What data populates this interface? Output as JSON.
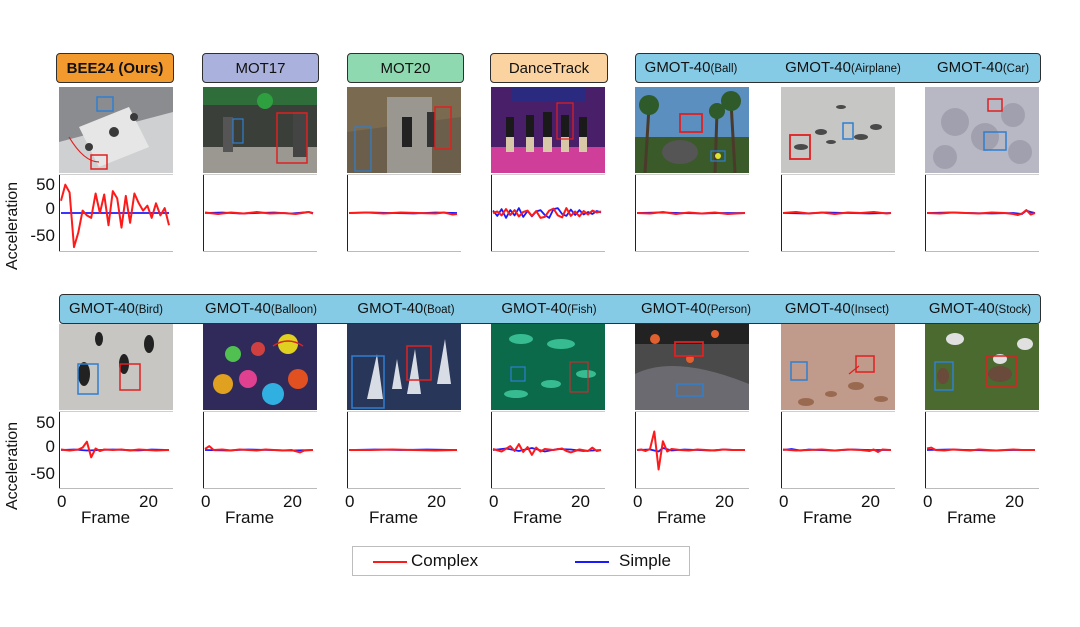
{
  "colors": {
    "complex": "#ff1a1a",
    "simple": "#1a1aff",
    "zero_line": "#5b5bff",
    "bee_header": "#f39a2e",
    "mot17_header": "#aab1dc",
    "mot20_header": "#8fd9b0",
    "dancetrack_header": "#fad3a0",
    "gmot_header": "#86cbe6"
  },
  "row1": {
    "headers": [
      "BEE24 (Ours)",
      "MOT17",
      "MOT20",
      "DanceTrack"
    ],
    "gmot_prefix": "GMOT-40",
    "gmot_suffixes": [
      "(Ball)",
      "(Airplane)",
      "(Car)"
    ]
  },
  "row2": {
    "gmot_prefix": "GMOT-40",
    "gmot_suffixes": [
      "(Bird)",
      "(Balloon)",
      "(Boat)",
      "(Fish)",
      "(Person)",
      "(Insect)",
      "(Stock)"
    ]
  },
  "images": [
    "bees-icon",
    "street-crowd-icon",
    "station-crowd-icon",
    "dancers-icon",
    "ball-sports-icon",
    "airplanes-icon",
    "cars-icon",
    "penguins-icon",
    "balloons-icon",
    "sailboats-icon",
    "fish-icon",
    "parachute-people-icon",
    "insects-icon",
    "livestock-icon"
  ],
  "axes": {
    "ylabel": "Acceleration",
    "xlabel": "Frame",
    "yticks": [
      "50",
      "0",
      "-50"
    ],
    "xticks": [
      "0",
      "20"
    ]
  },
  "legend": {
    "complex": "Complex",
    "simple": "Simple"
  },
  "chart_data": {
    "type": "line",
    "xlabel": "Frame",
    "ylabel": "Acceleration",
    "ylim": [
      -80,
      80
    ],
    "xlim": [
      0,
      25
    ],
    "panels": [
      {
        "title": "BEE24 (Ours)",
        "series": [
          {
            "name": "Complex",
            "x": [
              0,
              1,
              2,
              3,
              4,
              5,
              6,
              7,
              8,
              9,
              10,
              11,
              12,
              13,
              14,
              15,
              16,
              17,
              18,
              19,
              20,
              21,
              22,
              23,
              24,
              25
            ],
            "y": [
              25,
              58,
              42,
              -70,
              -40,
              5,
              -5,
              -10,
              40,
              0,
              38,
              -25,
              45,
              30,
              -30,
              35,
              -20,
              40,
              20,
              5,
              15,
              -10,
              20,
              -5,
              10,
              -25
            ]
          },
          {
            "name": "Simple",
            "x": [
              0,
              25
            ],
            "y": [
              0,
              0
            ]
          }
        ]
      },
      {
        "title": "MOT17",
        "series": [
          {
            "name": "Complex",
            "x": [
              0,
              3,
              6,
              9,
              12,
              15,
              18,
              21,
              24,
              25
            ],
            "y": [
              1,
              -2,
              1,
              -1,
              2,
              -1,
              0,
              -2,
              2,
              -1
            ]
          },
          {
            "name": "Simple",
            "x": [
              0,
              4,
              8,
              12,
              16,
              20,
              24,
              25
            ],
            "y": [
              0,
              1,
              -1,
              0,
              1,
              -1,
              2,
              0
            ]
          }
        ]
      },
      {
        "title": "MOT20",
        "series": [
          {
            "name": "Complex",
            "x": [
              0,
              4,
              8,
              12,
              16,
              20,
              22,
              24,
              25
            ],
            "y": [
              0,
              1,
              -1,
              1,
              0,
              -1,
              1,
              -3,
              -2
            ]
          },
          {
            "name": "Simple",
            "x": [
              0,
              5,
              10,
              15,
              20,
              25
            ],
            "y": [
              0,
              1,
              0,
              -1,
              1,
              0
            ]
          }
        ]
      },
      {
        "title": "DanceTrack",
        "series": [
          {
            "name": "Complex",
            "x": [
              0,
              1,
              2,
              3,
              4,
              5,
              6,
              7,
              8,
              9,
              10,
              11,
              12,
              13,
              14,
              15,
              16,
              17,
              18,
              19,
              20,
              21,
              22,
              23,
              24,
              25
            ],
            "y": [
              0,
              3,
              -5,
              8,
              -4,
              6,
              -7,
              2,
              5,
              -6,
              4,
              -10,
              -8,
              5,
              9,
              -5,
              -9,
              10,
              -6,
              3,
              -7,
              4,
              -3,
              5,
              1,
              3
            ]
          },
          {
            "name": "Simple",
            "x": [
              0,
              1,
              2,
              3,
              4,
              5,
              6,
              7,
              8,
              9,
              10,
              11,
              12,
              13,
              14,
              15,
              16,
              17,
              18,
              19,
              20,
              21,
              22,
              23,
              24,
              25
            ],
            "y": [
              5,
              -6,
              8,
              -10,
              6,
              -5,
              10,
              -8,
              4,
              -7,
              3,
              6,
              -4,
              -10,
              8,
              10,
              -2,
              -6,
              7,
              -4,
              6,
              -3,
              2,
              -2,
              4,
              1
            ]
          }
        ]
      },
      {
        "title": "GMOT-40(Ball)",
        "series": [
          {
            "name": "Complex",
            "x": [
              0,
              3,
              6,
              9,
              12,
              15,
              18,
              21,
              25
            ],
            "y": [
              0,
              -1,
              2,
              -2,
              1,
              -1,
              1,
              -2,
              0
            ]
          },
          {
            "name": "Simple",
            "x": [
              0,
              5,
              10,
              15,
              20,
              25
            ],
            "y": [
              0,
              1,
              0,
              -1,
              0,
              0
            ]
          }
        ]
      },
      {
        "title": "GMOT-40(Airplane)",
        "series": [
          {
            "name": "Complex",
            "x": [
              0,
              3,
              6,
              9,
              12,
              15,
              18,
              21,
              24,
              25
            ],
            "y": [
              0,
              2,
              -1,
              1,
              -2,
              1,
              0,
              2,
              -1,
              0
            ]
          },
          {
            "name": "Simple",
            "x": [
              0,
              5,
              10,
              15,
              20,
              25
            ],
            "y": [
              0,
              -1,
              1,
              0,
              -1,
              0
            ]
          }
        ]
      },
      {
        "title": "GMOT-40(Car)",
        "series": [
          {
            "name": "Complex",
            "x": [
              0,
              3,
              6,
              9,
              12,
              15,
              18,
              20,
              21,
              22,
              23,
              24,
              25
            ],
            "y": [
              0,
              -1,
              1,
              0,
              -1,
              1,
              0,
              -2,
              -4,
              -1,
              6,
              -3,
              0
            ]
          },
          {
            "name": "Simple",
            "x": [
              0,
              5,
              10,
              15,
              20,
              22,
              23,
              24,
              25
            ],
            "y": [
              0,
              1,
              0,
              -1,
              0,
              -2,
              5,
              2,
              0
            ]
          }
        ]
      },
      {
        "title": "GMOT-40(Bird)",
        "series": [
          {
            "name": "Complex",
            "x": [
              0,
              2,
              4,
              5,
              6,
              7,
              8,
              9,
              10,
              12,
              14,
              16,
              18,
              20,
              22,
              25
            ],
            "y": [
              1,
              -1,
              1,
              5,
              17,
              -15,
              3,
              -2,
              1,
              0,
              1,
              -1,
              1,
              0,
              -1,
              0
            ]
          },
          {
            "name": "Simple",
            "x": [
              0,
              3,
              6,
              9,
              12,
              15,
              18,
              21,
              25
            ],
            "y": [
              0,
              1,
              -1,
              0,
              1,
              0,
              -1,
              1,
              0
            ]
          }
        ]
      },
      {
        "title": "GMOT-40(Balloon)",
        "series": [
          {
            "name": "Complex",
            "x": [
              0,
              1,
              2,
              4,
              6,
              8,
              10,
              12,
              14,
              16,
              18,
              20,
              22,
              23,
              25
            ],
            "y": [
              2,
              8,
              0,
              1,
              -1,
              1,
              0,
              -1,
              1,
              0,
              -1,
              0,
              -5,
              -1,
              0
            ]
          },
          {
            "name": "Simple",
            "x": [
              0,
              5,
              10,
              15,
              20,
              25
            ],
            "y": [
              0,
              -1,
              1,
              0,
              -1,
              0
            ]
          }
        ]
      },
      {
        "title": "GMOT-40(Boat)",
        "series": [
          {
            "name": "Complex",
            "x": [
              0,
              5,
              10,
              15,
              20,
              25
            ],
            "y": [
              0,
              0,
              1,
              0,
              -1,
              0
            ]
          },
          {
            "name": "Simple",
            "x": [
              0,
              6,
              12,
              18,
              25
            ],
            "y": [
              0,
              1,
              0,
              1,
              0
            ]
          }
        ]
      },
      {
        "title": "GMOT-40(Fish)",
        "series": [
          {
            "name": "Complex",
            "x": [
              0,
              2,
              4,
              5,
              6,
              7,
              8,
              9,
              10,
              11,
              12,
              14,
              16,
              17,
              18,
              20,
              22,
              23,
              24,
              25
            ],
            "y": [
              2,
              -3,
              8,
              -2,
              12,
              -4,
              6,
              -10,
              5,
              -3,
              2,
              0,
              3,
              -2,
              -5,
              1,
              -2,
              5,
              -2,
              0
            ]
          },
          {
            "name": "Simple",
            "x": [
              0,
              3,
              6,
              9,
              12,
              15,
              18,
              21,
              25
            ],
            "y": [
              0,
              3,
              -2,
              4,
              -3,
              2,
              1,
              -2,
              0
            ]
          }
        ]
      },
      {
        "title": "GMOT-40(Person)",
        "series": [
          {
            "name": "Complex",
            "x": [
              0,
              1,
              2,
              3,
              4,
              5,
              6,
              7,
              8,
              10,
              12,
              14,
              16,
              18,
              20,
              22,
              25
            ],
            "y": [
              0,
              1,
              -2,
              2,
              38,
              -40,
              18,
              -3,
              2,
              0,
              -1,
              1,
              0,
              -1,
              1,
              0,
              0
            ]
          },
          {
            "name": "Simple",
            "x": [
              0,
              3,
              5,
              6,
              8,
              11,
              14,
              17,
              20,
              23,
              25
            ],
            "y": [
              0,
              1,
              -3,
              4,
              -1,
              1,
              0,
              -1,
              1,
              0,
              0
            ]
          }
        ]
      },
      {
        "title": "GMOT-40(Insect)",
        "series": [
          {
            "name": "Complex",
            "x": [
              0,
              3,
              6,
              9,
              12,
              15,
              18,
              20,
              21,
              22,
              23,
              25
            ],
            "y": [
              1,
              -1,
              0,
              1,
              -1,
              1,
              0,
              -2,
              1,
              -4,
              1,
              0
            ]
          },
          {
            "name": "Simple",
            "x": [
              0,
              2,
              4,
              6,
              8,
              12,
              16,
              20,
              25
            ],
            "y": [
              0,
              2,
              -1,
              1,
              0,
              -1,
              1,
              0,
              0
            ]
          }
        ]
      },
      {
        "title": "GMOT-40(Stock)",
        "series": [
          {
            "name": "Complex",
            "x": [
              0,
              1,
              2,
              4,
              6,
              8,
              10,
              12,
              14,
              16,
              18,
              20,
              22,
              25
            ],
            "y": [
              3,
              5,
              0,
              -1,
              1,
              0,
              -1,
              1,
              0,
              -1,
              0,
              1,
              0,
              0
            ]
          },
          {
            "name": "Simple",
            "x": [
              0,
              5,
              10,
              15,
              20,
              25
            ],
            "y": [
              0,
              1,
              0,
              -1,
              0,
              0
            ]
          }
        ]
      }
    ]
  }
}
